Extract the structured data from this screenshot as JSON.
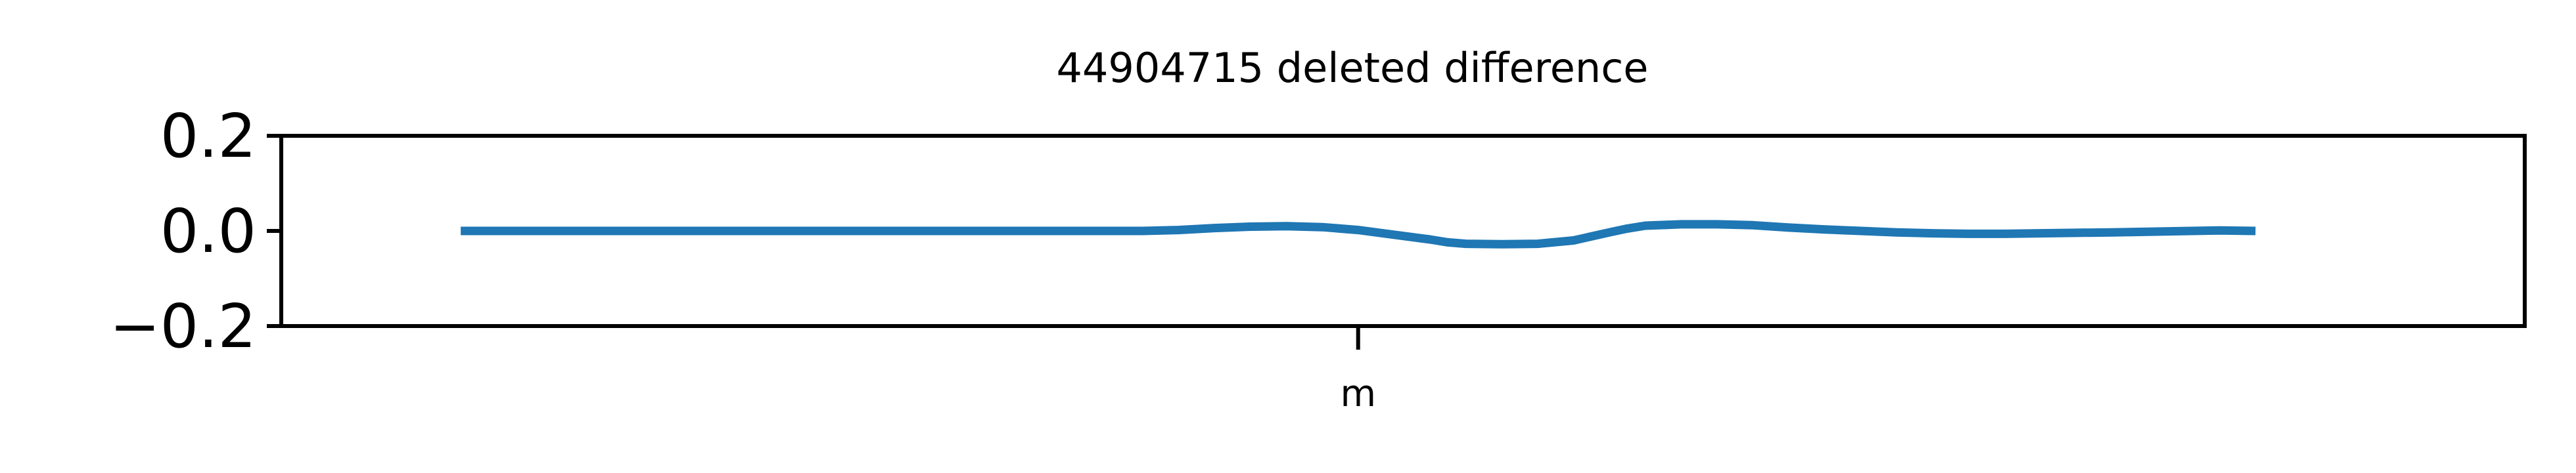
{
  "chart_data": {
    "type": "line",
    "title": "44904715 deleted difference",
    "xlabel": "",
    "ylabel": "",
    "ylim": [
      -0.2,
      0.2
    ],
    "y_ticks": [
      "0.2",
      "0.0",
      "−0.2"
    ],
    "y_tick_values": [
      0.2,
      0.0,
      -0.2
    ],
    "x_ticks": [
      "m"
    ],
    "x_tick_values": [
      0.0
    ],
    "xlim": [
      -0.6,
      0.65
    ],
    "grid": false,
    "line_color": "#1f77b4",
    "series": [
      {
        "x": [
          -0.5,
          -0.45,
          -0.4,
          -0.35,
          -0.3,
          -0.25,
          -0.2,
          -0.18,
          -0.15,
          -0.12,
          -0.1,
          -0.08,
          -0.06,
          -0.04,
          -0.02,
          0.0,
          0.02,
          0.04,
          0.05,
          0.06,
          0.08,
          0.1,
          0.12,
          0.14,
          0.15,
          0.16,
          0.18,
          0.2,
          0.22,
          0.24,
          0.26,
          0.28,
          0.3,
          0.32,
          0.34,
          0.36,
          0.38,
          0.4,
          0.42,
          0.45,
          0.48,
          0.5
        ],
        "y": [
          0.0,
          0.0,
          0.0,
          0.0,
          0.0,
          0.0,
          0.0,
          0.0,
          0.0,
          0.0,
          0.002,
          0.006,
          0.009,
          0.01,
          0.008,
          0.002,
          -0.008,
          -0.018,
          -0.024,
          -0.027,
          -0.028,
          -0.027,
          -0.02,
          -0.003,
          0.005,
          0.011,
          0.014,
          0.014,
          0.012,
          0.007,
          0.003,
          0.0,
          -0.003,
          -0.005,
          -0.006,
          -0.006,
          -0.005,
          -0.004,
          -0.003,
          -0.001,
          0.001,
          0.0
        ]
      }
    ]
  }
}
